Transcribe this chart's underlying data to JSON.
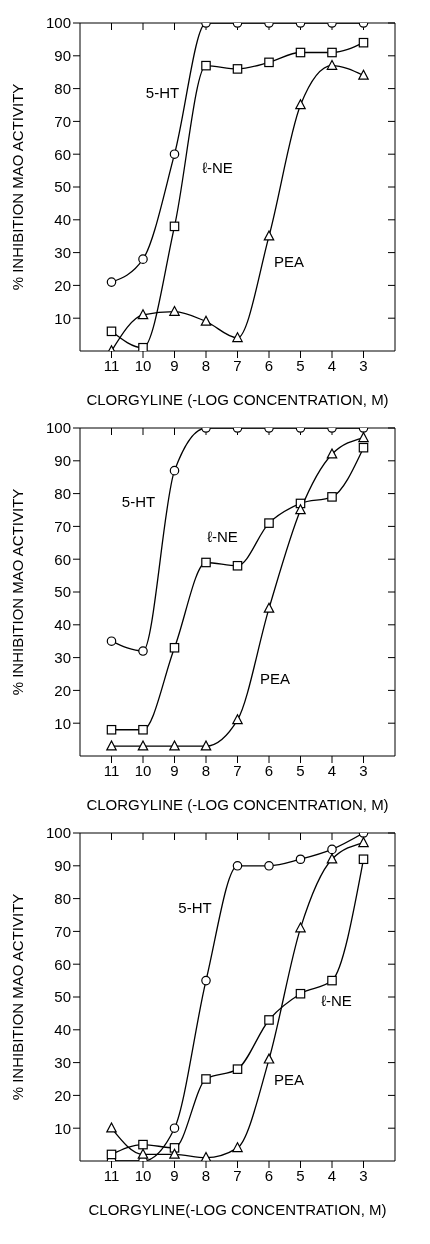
{
  "chart_data": [
    {
      "type": "line",
      "xlabel": "CLORGYLINE (-LOG CONCENTRATION, M)",
      "ylabel": "% INHIBITION MAO ACTIVITY",
      "x": [
        11,
        10,
        9,
        8,
        7,
        6,
        5,
        4,
        3
      ],
      "xlim": [
        12,
        2
      ],
      "xticks": [
        11,
        10,
        9,
        8,
        7,
        6,
        5,
        4,
        3
      ],
      "ylim": [
        0,
        100
      ],
      "yticks": [
        10,
        20,
        30,
        40,
        50,
        60,
        70,
        80,
        90,
        100
      ],
      "grid": false,
      "legend": false,
      "line_style": "solid",
      "series": [
        {
          "name": "5-HT",
          "color": "#000000",
          "marker": "circle",
          "values": [
            21,
            28,
            60,
            100,
            100,
            100,
            100,
            100,
            100
          ]
        },
        {
          "name": "ℓ-NE",
          "color": "#000000",
          "marker": "square",
          "values": [
            6,
            1,
            38,
            87,
            86,
            88,
            91,
            91,
            94
          ]
        },
        {
          "name": "PEA",
          "color": "#000000",
          "marker": "triangle",
          "values": [
            0,
            11,
            12,
            9,
            4,
            35,
            75,
            87,
            84
          ]
        }
      ]
    },
    {
      "type": "line",
      "xlabel": "CLORGYLINE (-LOG CONCENTRATION, M)",
      "ylabel": "% INHIBITION MAO ACTIVITY",
      "x": [
        11,
        10,
        9,
        8,
        7,
        6,
        5,
        4,
        3
      ],
      "xlim": [
        12,
        2
      ],
      "xticks": [
        11,
        10,
        9,
        8,
        7,
        6,
        5,
        4,
        3
      ],
      "ylim": [
        0,
        100
      ],
      "yticks": [
        10,
        20,
        30,
        40,
        50,
        60,
        70,
        80,
        90,
        100
      ],
      "grid": false,
      "legend": false,
      "line_style": "solid",
      "series": [
        {
          "name": "5-HT",
          "color": "#000000",
          "marker": "circle",
          "values": [
            35,
            32,
            87,
            100,
            100,
            100,
            100,
            100,
            100
          ]
        },
        {
          "name": "ℓ-NE",
          "color": "#000000",
          "marker": "square",
          "values": [
            8,
            8,
            33,
            59,
            58,
            71,
            77,
            79,
            94
          ]
        },
        {
          "name": "PEA",
          "color": "#000000",
          "marker": "triangle",
          "values": [
            3,
            3,
            3,
            3,
            11,
            45,
            75,
            92,
            97
          ]
        }
      ]
    },
    {
      "type": "line",
      "xlabel": "CLORGYLINE(-LOG CONCENTRATION, M)",
      "ylabel": "% INHIBITION MAO ACTIVITY",
      "x": [
        11,
        10,
        9,
        8,
        7,
        6,
        5,
        4,
        3
      ],
      "xlim": [
        12,
        2
      ],
      "xticks": [
        11,
        10,
        9,
        8,
        7,
        6,
        5,
        4,
        3
      ],
      "ylim": [
        0,
        100
      ],
      "yticks": [
        10,
        20,
        30,
        40,
        50,
        60,
        70,
        80,
        90,
        100
      ],
      "grid": false,
      "legend": false,
      "line_style": "solid",
      "series": [
        {
          "name": "5-HT",
          "color": "#000000",
          "marker": "circle",
          "values": [
            0,
            0,
            10,
            55,
            90,
            90,
            92,
            95,
            100
          ]
        },
        {
          "name": "ℓ-NE",
          "color": "#000000",
          "marker": "square",
          "values": [
            2,
            5,
            4,
            25,
            28,
            43,
            51,
            55,
            92
          ]
        },
        {
          "name": "PEA",
          "color": "#000000",
          "marker": "triangle",
          "values": [
            10,
            2,
            2,
            1,
            4,
            31,
            71,
            92,
            97
          ]
        }
      ]
    }
  ]
}
